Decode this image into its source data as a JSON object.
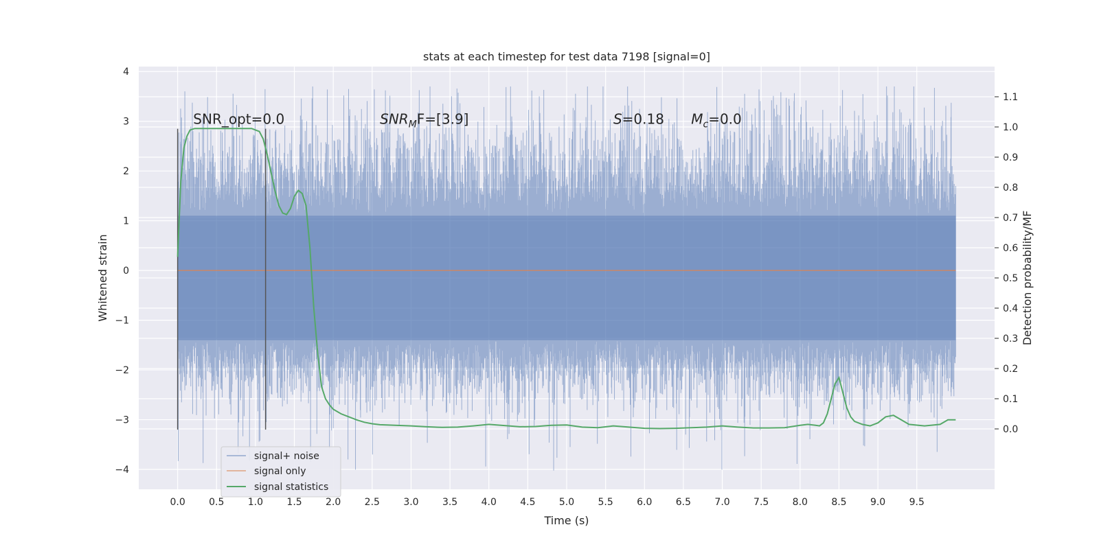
{
  "chart_data": {
    "type": "line",
    "title": "stats at each timestep for test data 7198 [signal=0]",
    "xlabel": "Time (s)",
    "ylabel_left": "Whitened strain",
    "ylabel_right": "Detection probability/MF",
    "xlim": [
      -0.5,
      10.5
    ],
    "ylim_left": [
      -4.4,
      4.1
    ],
    "ylim_right": [
      -0.2,
      1.2
    ],
    "x_ticks": [
      "0.0",
      "0.5",
      "1.0",
      "1.5",
      "2.0",
      "2.5",
      "3.0",
      "3.5",
      "4.0",
      "4.5",
      "5.0",
      "5.5",
      "6.0",
      "6.5",
      "7.0",
      "7.5",
      "8.0",
      "8.5",
      "9.0",
      "9.5"
    ],
    "y_ticks_left": [
      "−4",
      "−3",
      "−2",
      "−1",
      "0",
      "1",
      "2",
      "3",
      "4"
    ],
    "y_ticks_right": [
      "0.0",
      "0.1",
      "0.2",
      "0.3",
      "0.4",
      "0.5",
      "0.6",
      "0.7",
      "0.8",
      "0.9",
      "1.0",
      "1.1"
    ],
    "grid": true,
    "legend_position": "bottom-left",
    "series": [
      {
        "name": "signal+ noise",
        "color": "#4c72b0",
        "kind": "noise",
        "x_range": [
          0.0,
          10.0
        ],
        "dense_band": [
          -1.4,
          1.1
        ],
        "typical_extremes": [
          -2.4,
          2.6
        ],
        "max": 3.7,
        "min": -4.05
      },
      {
        "name": "signal only",
        "color": "#dd8452",
        "x": [
          0.0,
          10.0
        ],
        "y": [
          0.0,
          0.0
        ]
      },
      {
        "name": "signal statistics",
        "color": "#55a868",
        "axis": "right",
        "x": [
          0.0,
          0.04,
          0.08,
          0.12,
          0.16,
          0.22,
          0.28,
          0.35,
          0.45,
          0.55,
          0.65,
          0.75,
          0.85,
          0.95,
          1.0,
          1.05,
          1.1,
          1.15,
          1.2,
          1.25,
          1.3,
          1.35,
          1.4,
          1.45,
          1.5,
          1.55,
          1.6,
          1.65,
          1.7,
          1.75,
          1.8,
          1.85,
          1.9,
          1.95,
          2.0,
          2.1,
          2.2,
          2.3,
          2.4,
          2.5,
          2.6,
          2.8,
          3.0,
          3.2,
          3.4,
          3.6,
          3.8,
          4.0,
          4.2,
          4.4,
          4.6,
          4.8,
          5.0,
          5.2,
          5.4,
          5.6,
          5.8,
          6.0,
          6.2,
          6.4,
          6.6,
          6.8,
          7.0,
          7.2,
          7.4,
          7.6,
          7.8,
          8.0,
          8.1,
          8.2,
          8.25,
          8.3,
          8.35,
          8.4,
          8.45,
          8.5,
          8.55,
          8.6,
          8.65,
          8.7,
          8.8,
          8.9,
          9.0,
          9.1,
          9.2,
          9.3,
          9.4,
          9.6,
          9.8,
          9.9,
          10.0
        ],
        "y": [
          0.57,
          0.82,
          0.93,
          0.97,
          0.99,
          0.995,
          0.995,
          0.995,
          0.995,
          0.995,
          0.995,
          0.995,
          0.995,
          0.995,
          0.99,
          0.985,
          0.96,
          0.91,
          0.85,
          0.79,
          0.74,
          0.715,
          0.71,
          0.73,
          0.77,
          0.79,
          0.78,
          0.74,
          0.6,
          0.4,
          0.25,
          0.14,
          0.1,
          0.08,
          0.065,
          0.05,
          0.04,
          0.03,
          0.022,
          0.017,
          0.014,
          0.012,
          0.01,
          0.007,
          0.005,
          0.006,
          0.01,
          0.015,
          0.011,
          0.007,
          0.008,
          0.012,
          0.013,
          0.006,
          0.004,
          0.01,
          0.006,
          0.002,
          0.001,
          0.002,
          0.004,
          0.006,
          0.01,
          0.006,
          0.003,
          0.003,
          0.004,
          0.012,
          0.015,
          0.012,
          0.01,
          0.02,
          0.05,
          0.1,
          0.15,
          0.17,
          0.12,
          0.07,
          0.04,
          0.025,
          0.015,
          0.01,
          0.02,
          0.04,
          0.045,
          0.03,
          0.015,
          0.01,
          0.015,
          0.03,
          0.03
        ]
      }
    ],
    "vertical_lines": [
      {
        "x": 0.0,
        "y0": -3.2,
        "y1": 2.85
      },
      {
        "x": 1.13,
        "y0": -3.2,
        "y1": 2.85
      }
    ],
    "annotations": [
      {
        "id": "snr-opt",
        "text": "SNR_opt=0.0",
        "x": 0.2,
        "y": 2.95
      },
      {
        "id": "snr-mf",
        "text_main": "SNR",
        "text_sub": "M",
        "text_tail": "F=[3.9]",
        "x": 2.6,
        "y": 2.95
      },
      {
        "id": "s",
        "text_main": "S",
        "text_tail": "=0.18",
        "x": 5.6,
        "y": 2.95
      },
      {
        "id": "mc",
        "text_main": "M",
        "text_sub": "c",
        "text_tail": "=0.0",
        "x": 6.6,
        "y": 2.95
      }
    ]
  }
}
